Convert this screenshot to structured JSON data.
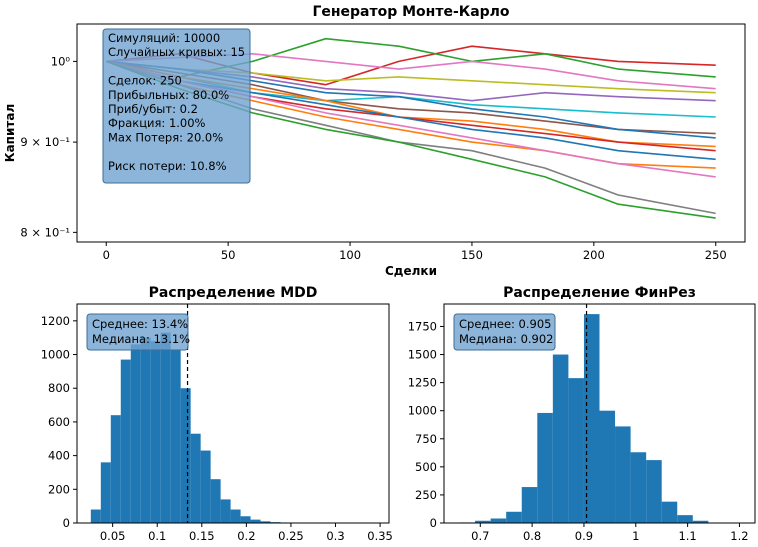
{
  "chart_data": [
    {
      "type": "line",
      "title": "Генератор Монте-Карло",
      "xlabel": "Сделки",
      "ylabel": "Капитал",
      "yscale": "log",
      "xlim": [
        -12,
        262
      ],
      "ylim": [
        0.79,
        1.05
      ],
      "xticks": [
        0,
        50,
        100,
        150,
        200,
        250
      ],
      "yticks": [
        {
          "value": 1.0,
          "label": "10⁰"
        },
        {
          "value": 0.9,
          "label": "9 × 10⁻¹"
        },
        {
          "value": 0.8,
          "label": "8 × 10⁻¹"
        }
      ],
      "info_lines": [
        "Симуляций: 10000",
        "Случайных кривых: 15",
        "",
        "Сделок: 250",
        "Прибыльных: 80.0%",
        "Приб/убыт: 0.2",
        "Фракция: 1.00%",
        "Max Потеря: 20.0%",
        "",
        "Риск потери: 10.8%"
      ],
      "info_position": "top-left",
      "series": [
        {
          "color": "#d62728",
          "x": [
            0,
            30,
            60,
            90,
            120,
            150,
            180,
            210,
            250
          ],
          "values": [
            1.0,
            1.01,
            0.985,
            0.97,
            1.0,
            1.02,
            1.01,
            1.0,
            0.995
          ]
        },
        {
          "color": "#2ca02c",
          "x": [
            0,
            30,
            60,
            90,
            120,
            150,
            180,
            210,
            250
          ],
          "values": [
            1.0,
            0.98,
            1.0,
            1.03,
            1.02,
            1.0,
            1.01,
            0.99,
            0.98
          ]
        },
        {
          "color": "#e377c2",
          "x": [
            0,
            30,
            60,
            90,
            120,
            150,
            180,
            210,
            250
          ],
          "values": [
            1.0,
            1.005,
            1.01,
            1.0,
            0.99,
            1.0,
            0.99,
            0.975,
            0.965
          ]
        },
        {
          "color": "#bcbd22",
          "x": [
            0,
            30,
            60,
            90,
            120,
            150,
            180,
            210,
            250
          ],
          "values": [
            1.0,
            0.99,
            0.985,
            0.975,
            0.98,
            0.975,
            0.97,
            0.965,
            0.96
          ]
        },
        {
          "color": "#9467bd",
          "x": [
            0,
            30,
            60,
            90,
            120,
            150,
            180,
            210,
            250
          ],
          "values": [
            1.0,
            0.99,
            0.98,
            0.965,
            0.96,
            0.95,
            0.96,
            0.955,
            0.95
          ]
        },
        {
          "color": "#17becf",
          "x": [
            0,
            30,
            60,
            90,
            120,
            150,
            180,
            210,
            250
          ],
          "values": [
            1.0,
            0.98,
            0.96,
            0.95,
            0.955,
            0.945,
            0.94,
            0.935,
            0.93
          ]
        },
        {
          "color": "#8c564b",
          "x": [
            0,
            30,
            60,
            90,
            120,
            150,
            180,
            210,
            250
          ],
          "values": [
            1.0,
            0.985,
            0.97,
            0.95,
            0.94,
            0.935,
            0.925,
            0.915,
            0.91
          ]
        },
        {
          "color": "#1f77b4",
          "x": [
            0,
            30,
            60,
            90,
            120,
            150,
            180,
            210,
            250
          ],
          "values": [
            1.0,
            0.99,
            0.975,
            0.96,
            0.955,
            0.94,
            0.93,
            0.915,
            0.905
          ]
        },
        {
          "color": "#ff7f0e",
          "x": [
            0,
            30,
            60,
            90,
            120,
            150,
            180,
            210,
            250
          ],
          "values": [
            1.0,
            0.98,
            0.965,
            0.95,
            0.93,
            0.925,
            0.915,
            0.9,
            0.895
          ]
        },
        {
          "color": "#d62728",
          "x": [
            0,
            30,
            60,
            90,
            120,
            150,
            180,
            210,
            250
          ],
          "values": [
            1.0,
            0.975,
            0.955,
            0.94,
            0.93,
            0.92,
            0.91,
            0.9,
            0.89
          ]
        },
        {
          "color": "#1f77b4",
          "x": [
            0,
            30,
            60,
            90,
            120,
            150,
            180,
            210,
            250
          ],
          "values": [
            1.0,
            0.975,
            0.96,
            0.945,
            0.93,
            0.915,
            0.905,
            0.89,
            0.88
          ]
        },
        {
          "color": "#ff7f0e",
          "x": [
            0,
            30,
            60,
            90,
            120,
            150,
            180,
            210,
            250
          ],
          "values": [
            1.0,
            0.97,
            0.95,
            0.93,
            0.915,
            0.9,
            0.89,
            0.875,
            0.87
          ]
        },
        {
          "color": "#e377c2",
          "x": [
            0,
            30,
            60,
            90,
            120,
            150,
            180,
            210,
            250
          ],
          "values": [
            1.0,
            0.975,
            0.955,
            0.935,
            0.92,
            0.905,
            0.89,
            0.875,
            0.86
          ]
        },
        {
          "color": "#7f7f7f",
          "x": [
            0,
            30,
            60,
            90,
            120,
            150,
            180,
            210,
            250
          ],
          "values": [
            1.0,
            0.97,
            0.94,
            0.92,
            0.9,
            0.89,
            0.87,
            0.84,
            0.82
          ]
        },
        {
          "color": "#2ca02c",
          "x": [
            0,
            30,
            60,
            90,
            120,
            150,
            180,
            210,
            250
          ],
          "values": [
            1.0,
            0.965,
            0.935,
            0.915,
            0.9,
            0.88,
            0.86,
            0.83,
            0.815
          ]
        }
      ]
    },
    {
      "type": "bar",
      "title": "Распределение MDD",
      "xlim": [
        0.01,
        0.36
      ],
      "ylim": [
        0,
        1300
      ],
      "xticks": [
        0.05,
        0.1,
        0.15,
        0.2,
        0.25,
        0.3,
        0.35
      ],
      "yticks": [
        0,
        200,
        400,
        600,
        800,
        1000,
        1200
      ],
      "bin_edges": [
        0.0255,
        0.0367,
        0.0479,
        0.0591,
        0.0703,
        0.0815,
        0.0927,
        0.1039,
        0.1151,
        0.1263,
        0.1375,
        0.1487,
        0.1599,
        0.1711,
        0.1823,
        0.1935,
        0.2047,
        0.2159,
        0.2271,
        0.2383,
        0.2495,
        0.2607,
        0.2719,
        0.2831
      ],
      "values": [
        80,
        360,
        640,
        970,
        1060,
        1100,
        1080,
        1130,
        1030,
        800,
        530,
        430,
        260,
        140,
        80,
        40,
        20,
        10,
        5,
        3,
        2,
        1,
        1
      ],
      "mean_line": 0.134,
      "info_lines": [
        "Среднее: 13.4%",
        "Медиана: 13.1%"
      ],
      "info_position": "top-left"
    },
    {
      "type": "bar",
      "title": "Распределение ФинРез",
      "xlim": [
        0.63,
        1.23
      ],
      "ylim": [
        0,
        1950
      ],
      "xticks": [
        0.7,
        0.8,
        0.9,
        1.0,
        1.1,
        1.2
      ],
      "yticks": [
        0,
        250,
        500,
        750,
        1000,
        1250,
        1500,
        1750
      ],
      "bin_edges": [
        0.66,
        0.69,
        0.72,
        0.75,
        0.78,
        0.81,
        0.84,
        0.87,
        0.9,
        0.93,
        0.96,
        0.99,
        1.02,
        1.05,
        1.08,
        1.11,
        1.14
      ],
      "values": [
        5,
        20,
        40,
        100,
        320,
        980,
        1500,
        1290,
        1860,
        1000,
        860,
        630,
        560,
        190,
        70,
        20
      ],
      "mean_line": 0.905,
      "info_lines": [
        "Среднее: 0.905",
        "Медиана: 0.902"
      ],
      "info_position": "top-left"
    }
  ]
}
